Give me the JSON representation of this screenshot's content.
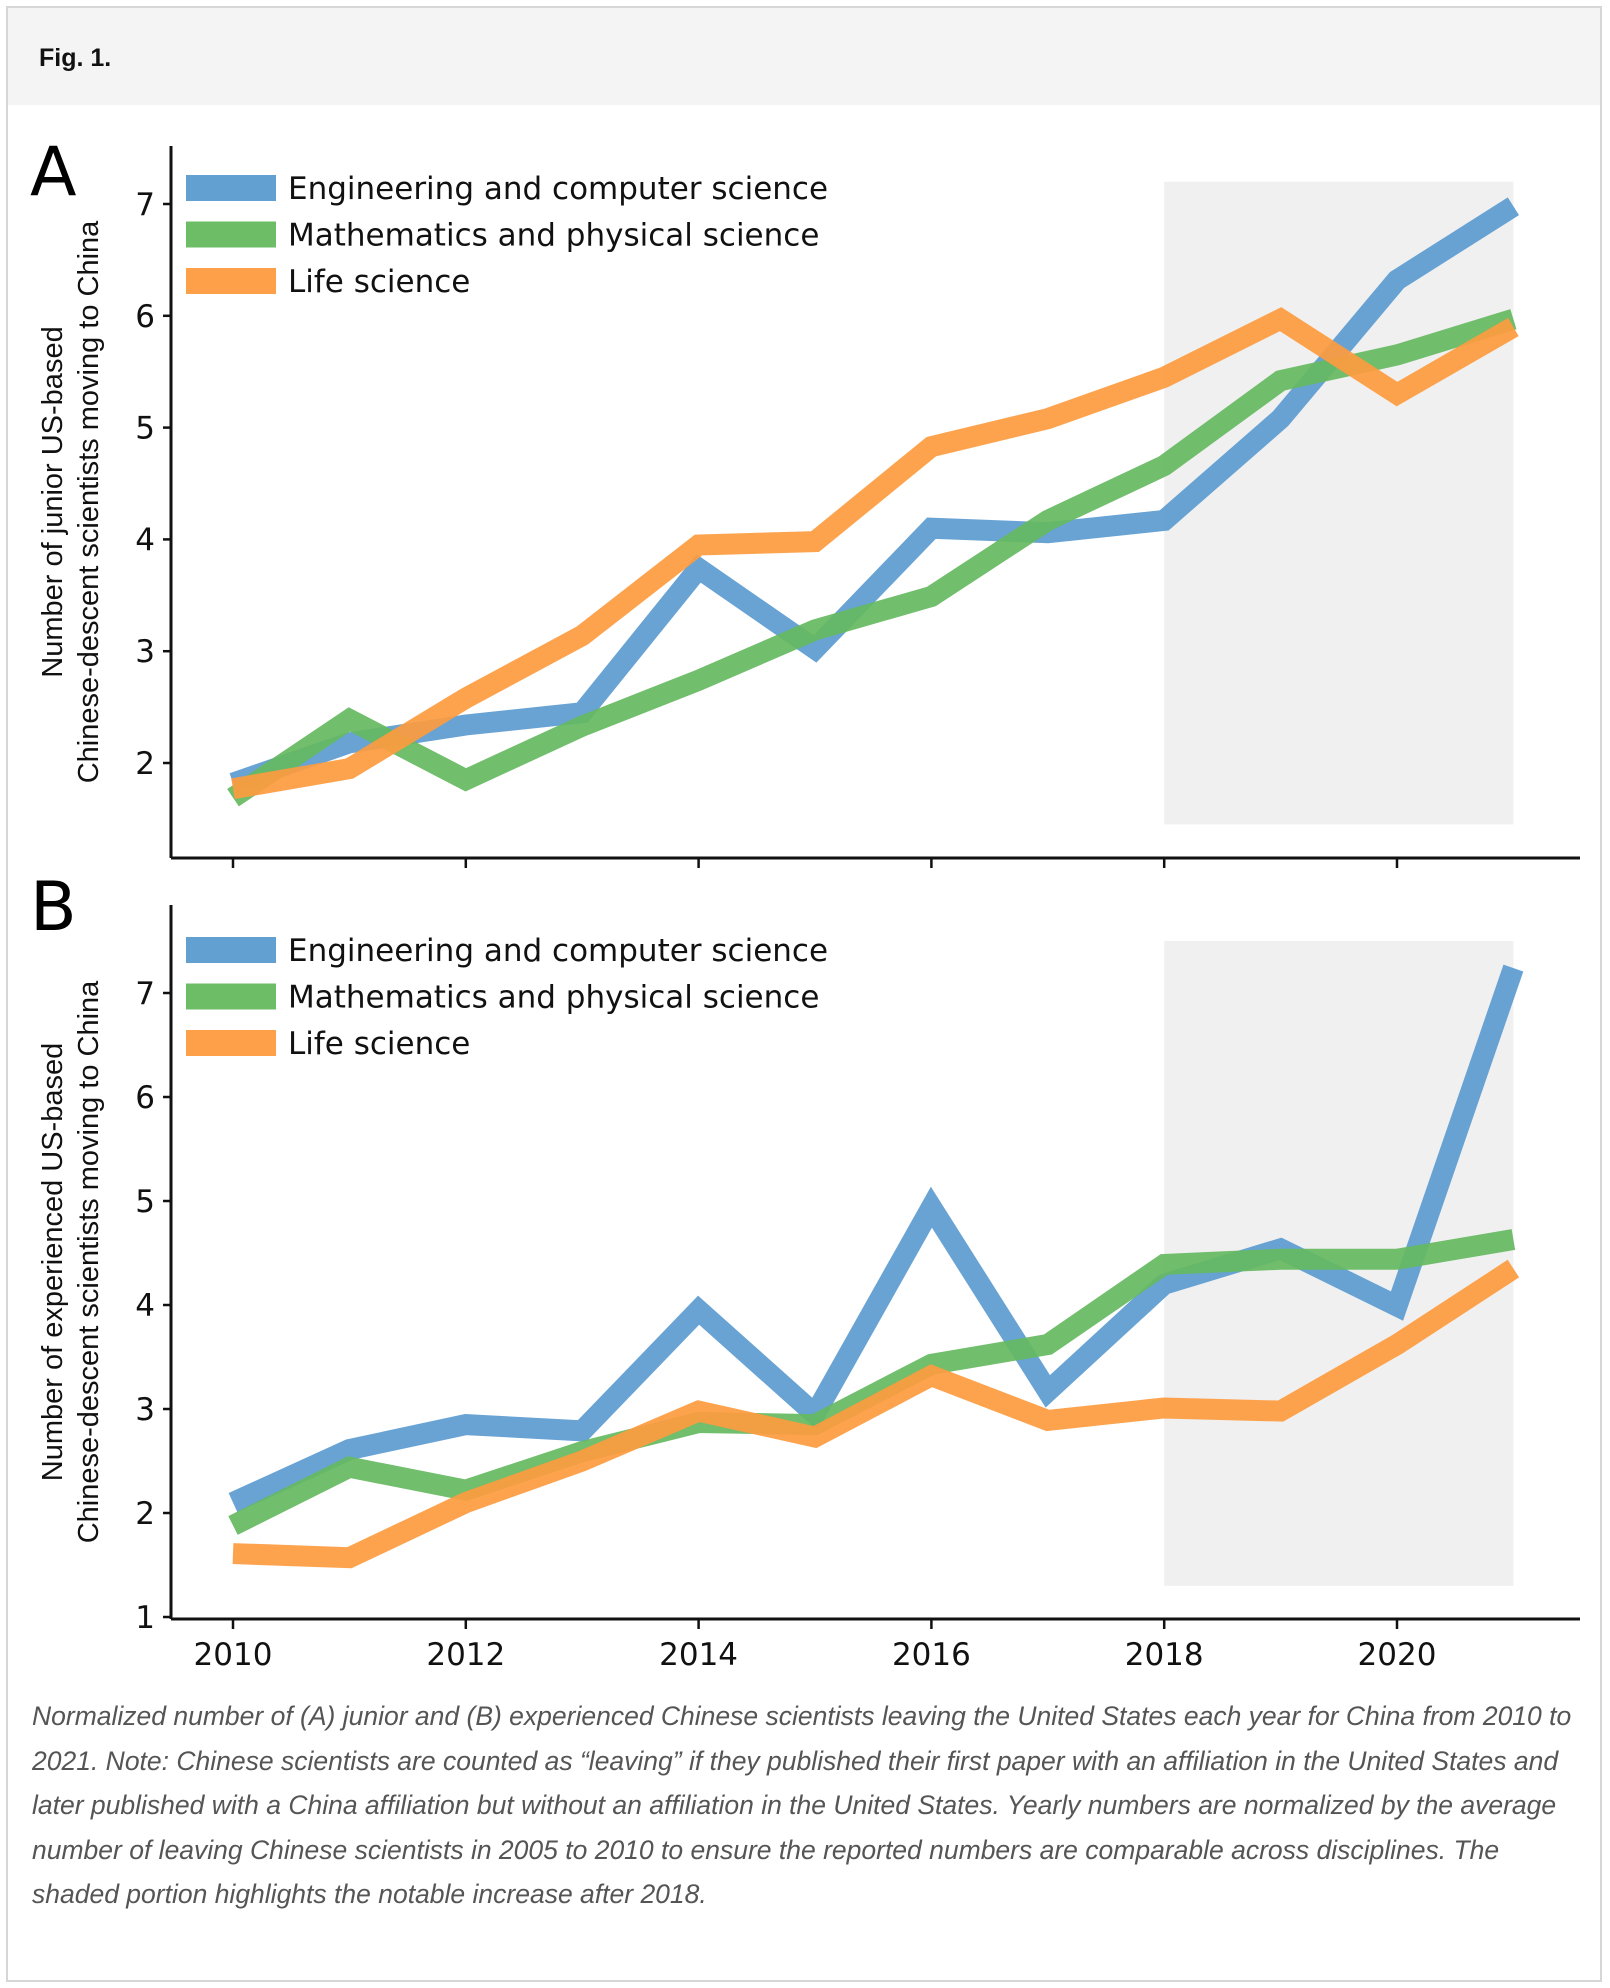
{
  "figure": {
    "title": "Fig. 1.",
    "caption": "Normalized number of (A) junior and (B) experienced Chinese scientists leaving the United States each year for China from 2010 to 2021. Note: Chinese scientists are counted as “leaving” if they published their first paper with an affiliation in the United States and later published with a China affiliation but without an affiliation in the United States. Yearly numbers are normalized by the average number of leaving Chinese scientists in 2005 to 2010 to ensure the reported numbers are comparable across disciplines. The shaded portion highlights the notable increase after 2018."
  },
  "colors": {
    "engineering": "#5b9bd0",
    "mathematics": "#65b95f",
    "life": "#fd9b3f",
    "shade": "#f0f0f0",
    "axis": "#111111"
  },
  "chart_data": [
    {
      "type": "line",
      "panel_label": "A",
      "title": "",
      "xlabel": "",
      "ylabel": "Number of junior US-based\nChinese-descent scientists moving to China",
      "ylabel_lines": [
        "Number of junior US-based",
        "Chinese-descent scientists moving to China"
      ],
      "x": [
        2010,
        2011,
        2012,
        2013,
        2014,
        2015,
        2016,
        2017,
        2018,
        2019,
        2020,
        2021
      ],
      "xlim": [
        2009.5,
        2021.5
      ],
      "ylim": [
        1.3,
        7.5
      ],
      "xticks": [
        2010,
        2012,
        2014,
        2016,
        2018,
        2020
      ],
      "xtick_labels_visible": false,
      "yticks": [
        2,
        3,
        4,
        5,
        6,
        7
      ],
      "grid": false,
      "legend_position": "top-left",
      "shaded_region": {
        "x_start": 2018,
        "x_end": 2021,
        "y_start": 1.45,
        "y_end": 7.2
      },
      "series": [
        {
          "name": "Engineering and computer science",
          "color_key": "engineering",
          "values": [
            1.82,
            2.18,
            2.34,
            2.45,
            3.74,
            3.02,
            4.1,
            4.06,
            4.17,
            5.08,
            6.32,
            6.98
          ]
        },
        {
          "name": "Mathematics and physical science",
          "color_key": "mathematics",
          "values": [
            1.69,
            2.39,
            1.85,
            2.33,
            2.74,
            3.19,
            3.49,
            4.17,
            4.66,
            5.42,
            5.65,
            5.97
          ]
        },
        {
          "name": "Life science",
          "color_key": "life",
          "values": [
            1.77,
            1.95,
            2.58,
            3.14,
            3.95,
            3.98,
            4.83,
            5.08,
            5.45,
            5.97,
            5.3,
            5.9
          ]
        }
      ]
    },
    {
      "type": "line",
      "panel_label": "B",
      "title": "",
      "xlabel": "",
      "ylabel": "Number of experienced US-based\nChinese-descent scientists moving to China",
      "ylabel_lines": [
        "Number of experienced US-based",
        "Chinese-descent scientists moving to China"
      ],
      "x": [
        2010,
        2011,
        2012,
        2013,
        2014,
        2015,
        2016,
        2017,
        2018,
        2019,
        2020,
        2021
      ],
      "xlim": [
        2009.5,
        2021.5
      ],
      "ylim": [
        1.0,
        7.7
      ],
      "xticks": [
        2010,
        2012,
        2014,
        2016,
        2018,
        2020
      ],
      "xtick_labels": [
        "2010",
        "2012",
        "2014",
        "2016",
        "2018",
        "2020"
      ],
      "yticks": [
        1,
        2,
        3,
        4,
        5,
        6,
        7
      ],
      "grid": false,
      "legend_position": "top-left",
      "shaded_region": {
        "x_start": 2018,
        "x_end": 2021,
        "y_start": 1.3,
        "y_end": 7.5
      },
      "series": [
        {
          "name": "Engineering and computer science",
          "color_key": "engineering",
          "values": [
            2.1,
            2.61,
            2.85,
            2.79,
            3.95,
            2.95,
            4.94,
            3.17,
            4.2,
            4.54,
            3.99,
            7.24
          ]
        },
        {
          "name": "Mathematics and physical science",
          "color_key": "mathematics",
          "values": [
            1.88,
            2.44,
            2.22,
            2.59,
            2.87,
            2.85,
            3.43,
            3.62,
            4.39,
            4.44,
            4.44,
            4.63
          ]
        },
        {
          "name": "Life science",
          "color_key": "life",
          "values": [
            1.61,
            1.57,
            2.1,
            2.5,
            2.98,
            2.73,
            3.32,
            2.89,
            3.01,
            2.98,
            3.62,
            4.35
          ]
        }
      ]
    }
  ]
}
